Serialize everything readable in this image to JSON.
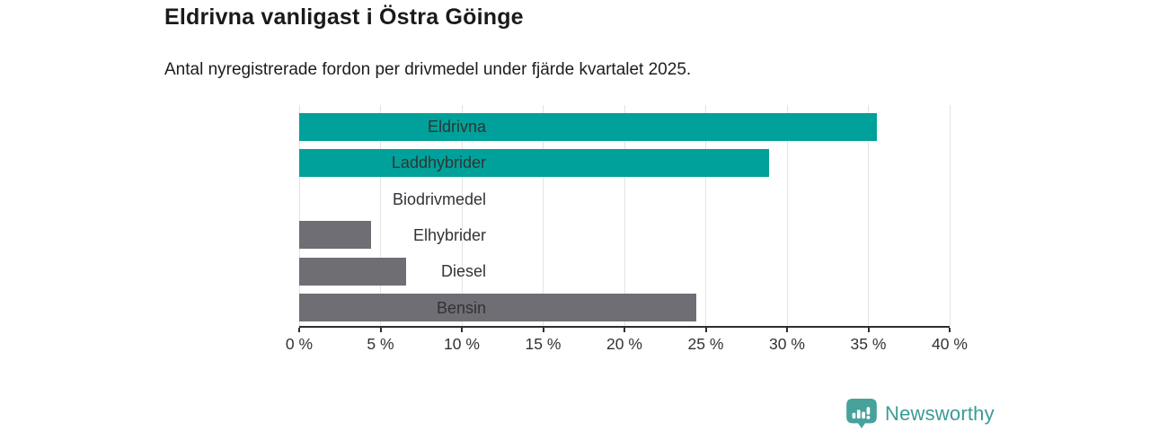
{
  "header": {
    "title": "Eldrivna vanligast i Östra Göinge",
    "subtitle": "Antal nyregistrerade fordon per drivmedel under fjärde kvartalet 2025."
  },
  "chart_data": {
    "type": "bar",
    "orientation": "horizontal",
    "title": "Eldrivna vanligast i Östra Göinge",
    "subtitle": "Antal nyregistrerade fordon per drivmedel under fjärde kvartalet 2025.",
    "categories": [
      "Eldrivna",
      "Laddhybrider",
      "Biodrivmedel",
      "Elhybrider",
      "Diesel",
      "Bensin"
    ],
    "values": [
      35.5,
      28.9,
      0,
      4.4,
      6.6,
      24.4
    ],
    "unit": "%",
    "bar_colors": [
      "#00a19a",
      "#00a19a",
      "#6e6e74",
      "#6e6e74",
      "#6e6e74",
      "#6e6e74"
    ],
    "xlim": [
      0,
      40
    ],
    "x_tick_values": [
      0,
      5,
      10,
      15,
      20,
      25,
      30,
      35,
      40
    ],
    "x_tick_labels": [
      "0 %",
      "5 %",
      "10 %",
      "15 %",
      "20 %",
      "25 %",
      "30 %",
      "35 %",
      "40 %"
    ],
    "grid": "vertical",
    "legend": "none"
  },
  "colors": {
    "accent_teal": "#00a19a",
    "neutral_gray": "#6e6e74",
    "gridline": "#e3e3e3",
    "axis": "#2f2f2f",
    "title_text": "#1a1a1a",
    "label_text": "#333333",
    "logo_teal": "#3a9c96"
  },
  "branding": {
    "logo_text": "Newsworthy"
  }
}
